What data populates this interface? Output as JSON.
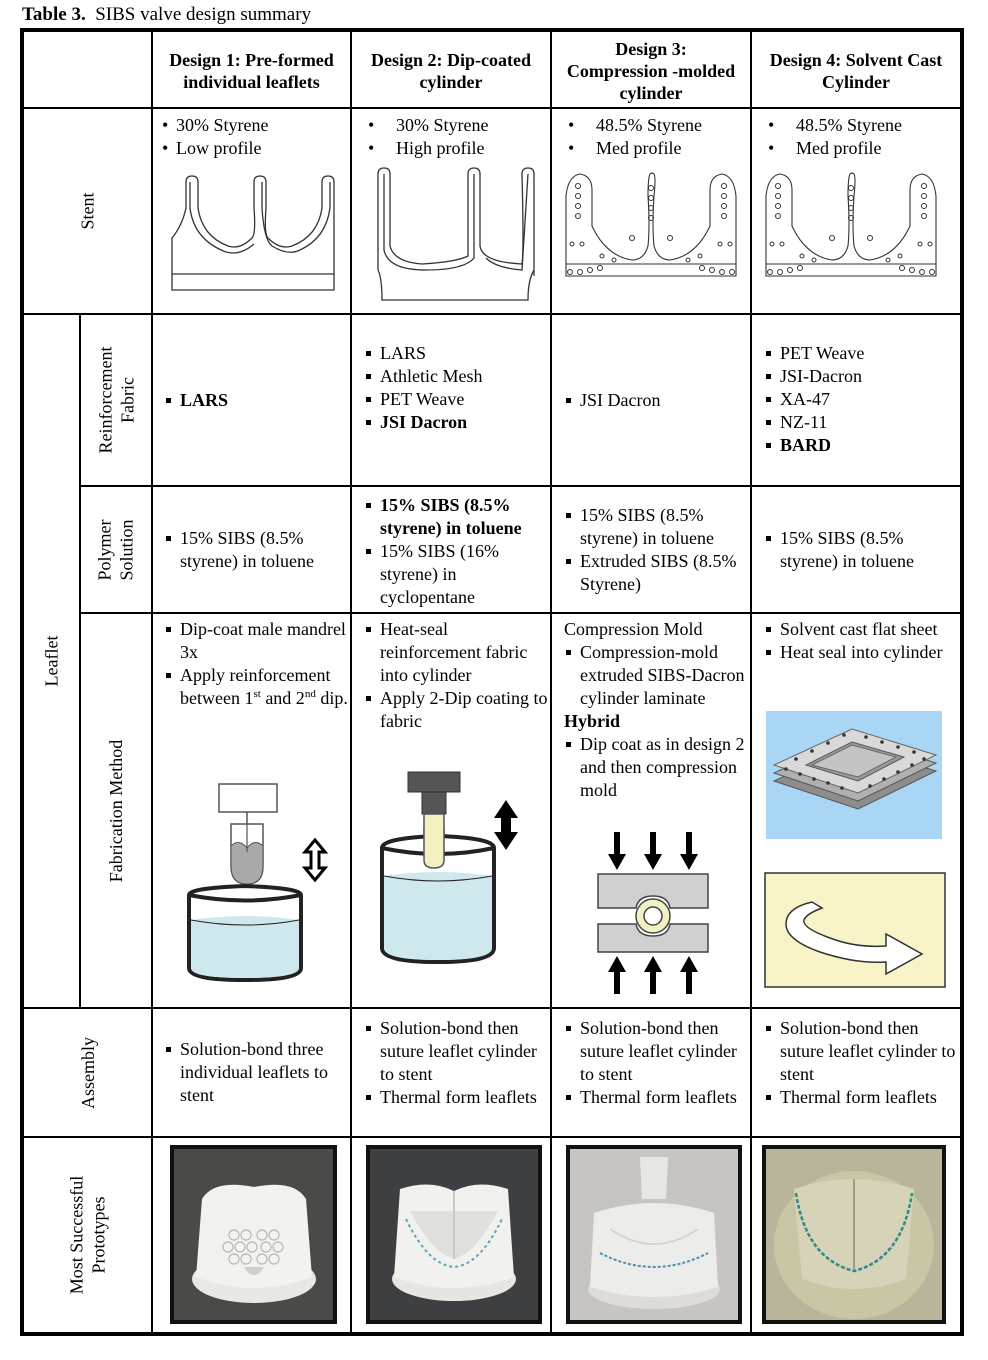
{
  "caption": {
    "number": "Table 3.",
    "title": "SIBS valve design summary"
  },
  "headers": [
    "Design 1:  Pre-formed individual leaflets",
    "Design 2: Dip-coated cylinder",
    "Design 3: Compression -molded cylinder",
    "Design 4: Solvent Cast Cylinder"
  ],
  "row_labels": {
    "stent": "Stent",
    "leaflet": "Leaflet",
    "reinforcement": [
      "Reinforcement",
      "Fabric"
    ],
    "polymer": [
      "Polymer",
      "Solution"
    ],
    "fabrication": "Fabrication Method",
    "assembly": "Assembly",
    "prototypes": [
      "Most Successful",
      "Prototypes"
    ]
  },
  "stent": [
    [
      "30% Styrene",
      "Low profile"
    ],
    [
      "30% Styrene",
      "High profile"
    ],
    [
      "48.5% Styrene",
      "Med profile"
    ],
    [
      "48.5% Styrene",
      "Med profile"
    ]
  ],
  "reinforcement": {
    "d1": [
      "LARS"
    ],
    "d2": [
      "LARS",
      "Athletic Mesh",
      "PET Weave",
      "JSI Dacron"
    ],
    "d3": [
      "JSI Dacron"
    ],
    "d4": [
      "PET Weave",
      "JSI-Dacron",
      "XA-47",
      "NZ-11",
      "BARD"
    ]
  },
  "polymer": {
    "d1": [
      "15% SIBS (8.5% styrene) in toluene"
    ],
    "d2": [
      "15% SIBS (8.5% styrene) in toluene",
      "15% SIBS (16% styrene) in cyclopentane"
    ],
    "d3": [
      "15% SIBS (8.5% styrene) in toluene",
      "Extruded SIBS (8.5% Styrene)"
    ],
    "d4": [
      "15% SIBS (8.5% styrene) in toluene"
    ]
  },
  "fabrication": {
    "d1": {
      "item1": "Dip-coat male mandrel 3x",
      "item2_pre": "Apply reinforcement between 1",
      "sup1": "st",
      "mid": " and 2",
      "sup2": "nd",
      "end": " dip."
    },
    "d2": [
      "Heat-seal reinforcement fabric into cylinder",
      "Apply 2-Dip coating to fabric"
    ],
    "d3": {
      "heading1": "Compression Mold",
      "item1": "Compression-mold extruded SIBS-Dacron cylinder laminate",
      "heading2": "Hybrid",
      "item2": "Dip coat as in design 2 and then compression mold"
    },
    "d4": [
      "Solvent cast flat sheet",
      "Heat seal into cylinder"
    ]
  },
  "assembly": {
    "d1": [
      "Solution-bond three individual leaflets to stent"
    ],
    "d2": [
      "Solution-bond then suture leaflet cylinder to stent",
      "Thermal form leaflets"
    ],
    "d3": [
      "Solution-bond then suture leaflet cylinder to stent",
      "Thermal form leaflets"
    ],
    "d4": [
      "Solution-bond then suture leaflet cylinder to stent",
      "Thermal form leaflets"
    ]
  },
  "colors": {
    "fluid": "#cfe8ee",
    "mold": "#d0d0d0",
    "sheet_bg": "#a9d6f5",
    "arrow_bg": "#f8f4c8",
    "tube": "#f3f0c2"
  }
}
